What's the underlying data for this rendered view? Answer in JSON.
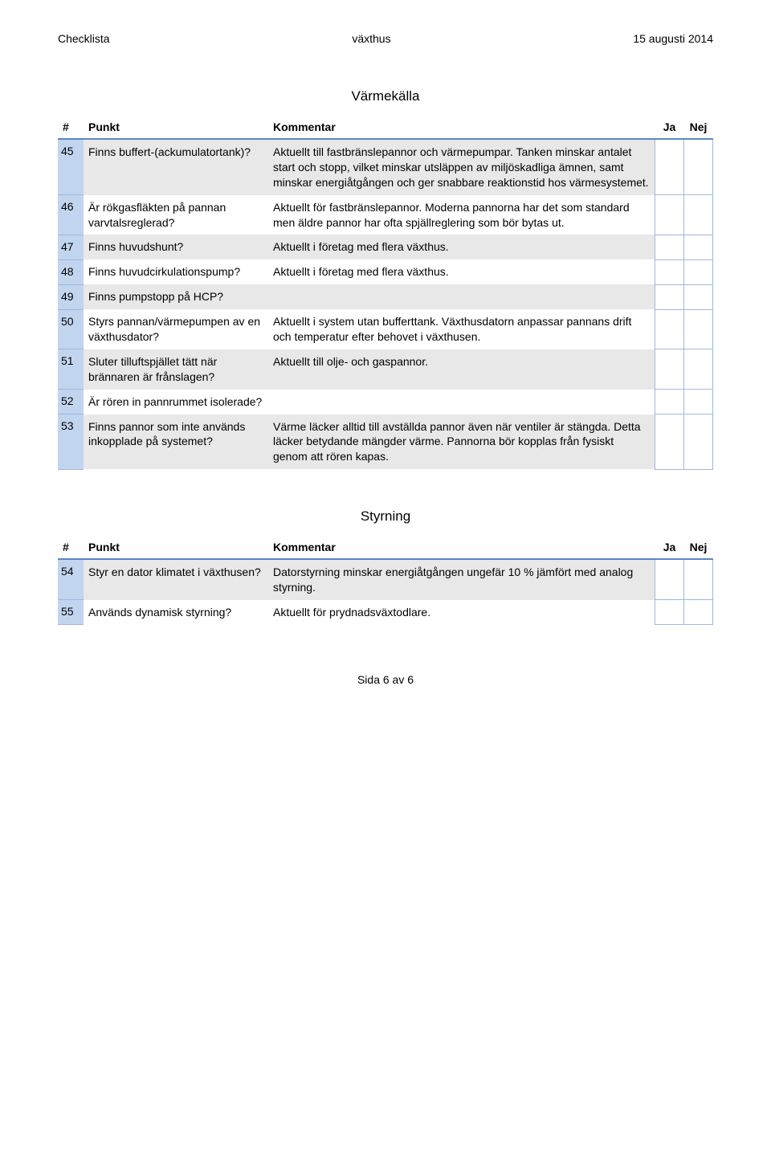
{
  "header": {
    "left": "Checklista",
    "center": "växthus",
    "right": "15 augusti 2014"
  },
  "colors": {
    "header_rule": "#5a87c6",
    "num_bg": "#c2d5ef",
    "num_border": "#9fb8dd",
    "row_alt_bg": "#e8e8e8",
    "check_border": "#9fb8dd"
  },
  "columns": {
    "hash": "#",
    "punkt": "Punkt",
    "kommentar": "Kommentar",
    "ja": "Ja",
    "nej": "Nej"
  },
  "sections": [
    {
      "title": "Värmekälla",
      "rows": [
        {
          "n": "45",
          "punkt": "Finns buffert-(ackumulatortank)?",
          "kommentar": "Aktuellt till fastbränslepannor och värmepumpar. Tanken minskar antalet start och stopp, vilket minskar utsläppen av miljöskadliga ämnen, samt minskar energiåtgången och ger snabbare reaktionstid hos värmesystemet."
        },
        {
          "n": "46",
          "punkt": "Är rökgasfläkten på pannan varvtalsreglerad?",
          "kommentar": "Aktuellt för fastbränslepannor. Moderna pannorna har det som standard men äldre pannor har ofta spjällreglering som bör bytas ut."
        },
        {
          "n": "47",
          "punkt": "Finns huvudshunt?",
          "kommentar": "Aktuellt i företag med flera växthus."
        },
        {
          "n": "48",
          "punkt": "Finns huvudcirkulationspump?",
          "kommentar": "Aktuellt i företag med flera växthus."
        },
        {
          "n": "49",
          "punkt": "Finns pumpstopp på HCP?",
          "kommentar": ""
        },
        {
          "n": "50",
          "punkt": "Styrs pannan/värmepumpen av en växthusdator?",
          "kommentar": "Aktuellt i system utan bufferttank. Växthusdatorn anpassar pannans drift och temperatur efter behovet i växthusen."
        },
        {
          "n": "51",
          "punkt": "Sluter tilluftspjället tätt när brännaren är frånslagen?",
          "kommentar": "Aktuellt till olje- och gaspannor."
        },
        {
          "n": "52",
          "punkt": "Är rören in pannrummet isolerade?",
          "kommentar": ""
        },
        {
          "n": "53",
          "punkt": "Finns pannor som inte används inkopplade på systemet?",
          "kommentar": "Värme läcker alltid till avställda pannor även när ventiler är stängda. Detta läcker betydande mängder värme. Pannorna bör kopplas från fysiskt genom att rören kapas."
        }
      ]
    },
    {
      "title": "Styrning",
      "rows": [
        {
          "n": "54",
          "punkt": "Styr en dator klimatet i växthusen?",
          "kommentar": "Datorstyrning minskar energiåtgången ungefär 10 % jämfört med analog styrning."
        },
        {
          "n": "55",
          "punkt": "Används dynamisk styrning?",
          "kommentar": "Aktuellt för prydnadsväxtodlare."
        }
      ]
    }
  ],
  "footer": "Sida 6 av 6"
}
